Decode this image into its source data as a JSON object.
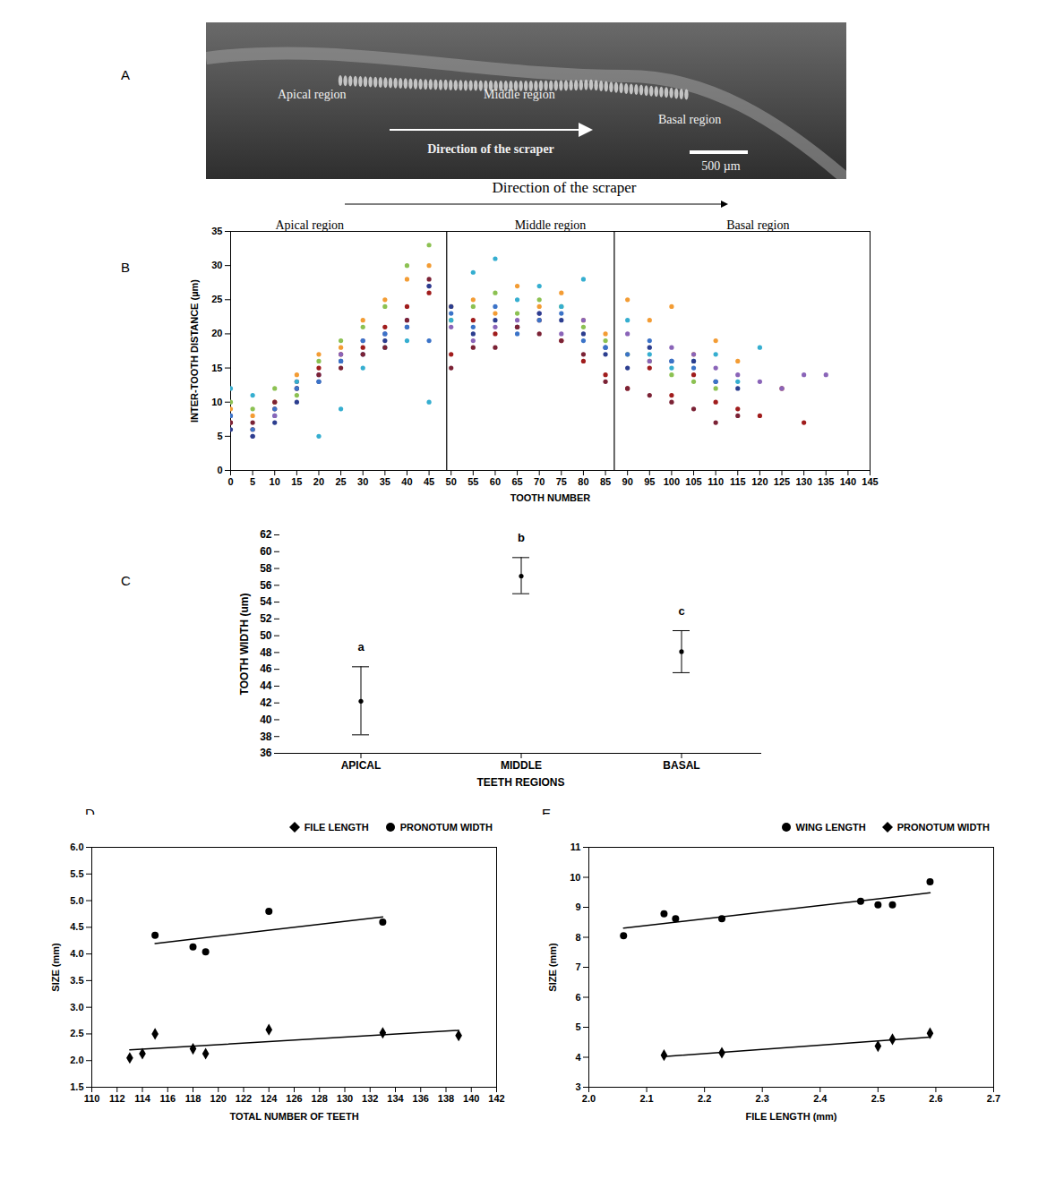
{
  "chart_data": [
    {
      "panel": "A",
      "type": "image",
      "labels": [
        "Apical region",
        "Middle region",
        "Basal region"
      ],
      "arrow_label": "Direction of the scraper",
      "scale_bar": "500 µm"
    },
    {
      "panel": "B",
      "type": "scatter",
      "title": "Direction of the scraper",
      "region_labels": [
        "Apical region",
        "Middle region",
        "Basal region"
      ],
      "region_boundaries": [
        49,
        87
      ],
      "x_label": "TOOTH NUMBER",
      "y_label": "INTER-TOOTH DISTANCE (µm)",
      "xlim": [
        0,
        145
      ],
      "xticks": [
        0,
        5,
        10,
        15,
        20,
        25,
        30,
        35,
        40,
        45,
        50,
        55,
        60,
        65,
        70,
        75,
        80,
        85,
        90,
        95,
        100,
        105,
        110,
        115,
        120,
        125,
        130,
        135,
        140,
        145
      ],
      "ylim": [
        0,
        35
      ],
      "yticks": [
        0,
        5,
        10,
        15,
        20,
        25,
        30,
        35
      ],
      "marker": "circle",
      "series": [
        {
          "color": "#a01c1c",
          "x": [
            0,
            5,
            10,
            15,
            20,
            25,
            30,
            35,
            40,
            45,
            50,
            55,
            60,
            65,
            70,
            75,
            80,
            85,
            90,
            95,
            100,
            105,
            110,
            115,
            120,
            125,
            130
          ],
          "values": [
            7,
            6,
            9,
            13,
            15,
            17,
            18,
            21,
            24,
            26,
            17,
            22,
            20,
            21,
            22,
            19,
            16,
            14,
            12,
            15,
            11,
            14,
            10,
            9,
            8,
            12,
            7
          ]
        },
        {
          "color": "#f39c34",
          "x": [
            0,
            5,
            10,
            15,
            20,
            25,
            30,
            35,
            40,
            45,
            50,
            55,
            60,
            65,
            70,
            75,
            80,
            85,
            90,
            95,
            100,
            105,
            110,
            115
          ],
          "values": [
            9,
            8,
            10,
            14,
            17,
            18,
            22,
            25,
            28,
            30,
            24,
            25,
            23,
            27,
            24,
            26,
            22,
            20,
            25,
            22,
            24,
            17,
            19,
            16
          ]
        },
        {
          "color": "#8cc152",
          "x": [
            0,
            5,
            10,
            15,
            20,
            25,
            30,
            35,
            40,
            45,
            50,
            55,
            60,
            65,
            70,
            75,
            80,
            85,
            90,
            95,
            100,
            105,
            110
          ],
          "values": [
            10,
            9,
            12,
            11,
            16,
            19,
            21,
            24,
            30,
            33,
            22,
            24,
            26,
            23,
            25,
            24,
            21,
            19,
            17,
            16,
            14,
            13,
            12
          ]
        },
        {
          "color": "#35aed0",
          "x": [
            0,
            5,
            10,
            15,
            20,
            25,
            30,
            35,
            40,
            45,
            50,
            55,
            60,
            65,
            70,
            75,
            80,
            85,
            90,
            95,
            100,
            105,
            110,
            115,
            120
          ],
          "values": [
            12,
            11,
            8,
            13,
            5,
            9,
            15,
            18,
            19,
            10,
            22,
            29,
            31,
            25,
            27,
            24,
            28,
            18,
            22,
            17,
            15,
            16,
            17,
            13,
            18
          ]
        },
        {
          "color": "#8a64b8",
          "x": [
            0,
            5,
            10,
            15,
            20,
            25,
            30,
            35,
            40,
            45,
            50,
            55,
            60,
            65,
            70,
            75,
            80,
            85,
            90,
            95,
            100,
            105,
            110,
            115,
            120,
            125,
            130,
            135
          ],
          "values": [
            8,
            5,
            8,
            12,
            14,
            17,
            19,
            20,
            22,
            27,
            21,
            19,
            21,
            22,
            23,
            20,
            22,
            18,
            20,
            16,
            18,
            17,
            15,
            14,
            13,
            12,
            14,
            14
          ]
        },
        {
          "color": "#2c3e8f",
          "x": [
            0,
            5,
            10,
            15,
            20,
            25,
            30,
            35,
            40,
            45,
            50,
            55,
            60,
            65,
            70,
            75,
            80,
            85,
            90,
            95,
            100,
            105,
            110,
            115
          ],
          "values": [
            6,
            5,
            7,
            10,
            13,
            16,
            17,
            19,
            21,
            27,
            24,
            20,
            22,
            21,
            23,
            22,
            20,
            17,
            15,
            18,
            16,
            16,
            13,
            12
          ]
        },
        {
          "color": "#7b2235",
          "x": [
            0,
            5,
            10,
            15,
            20,
            25,
            30,
            35,
            40,
            45,
            50,
            55,
            60,
            65,
            70,
            75,
            80,
            85,
            90,
            95,
            100,
            105,
            110,
            115
          ],
          "values": [
            7,
            7,
            10,
            12,
            14,
            15,
            17,
            18,
            22,
            28,
            15,
            18,
            18,
            21,
            20,
            19,
            17,
            13,
            12,
            11,
            10,
            9,
            7,
            8
          ]
        },
        {
          "color": "#3b73c8",
          "x": [
            0,
            5,
            10,
            15,
            20,
            25,
            30,
            35,
            40,
            45,
            50,
            55,
            60,
            65,
            70,
            75,
            80,
            85,
            90,
            95,
            100,
            105,
            110
          ],
          "values": [
            8,
            6,
            9,
            12,
            13,
            16,
            19,
            20,
            21,
            19,
            23,
            21,
            24,
            20,
            22,
            23,
            19,
            18,
            17,
            19,
            16,
            15,
            13
          ]
        }
      ]
    },
    {
      "panel": "C",
      "type": "errorbar",
      "color": "#000000",
      "categories": [
        "APICAL",
        "MIDDLE",
        "BASAL"
      ],
      "values": [
        42.2,
        57.1,
        48.1
      ],
      "lower": [
        38.2,
        55.0,
        45.6
      ],
      "upper": [
        46.3,
        59.3,
        50.6
      ],
      "group_labels": [
        "a",
        "b",
        "c"
      ],
      "x_label": "TEETH REGIONS",
      "y_label": "TOOTH WIDTH (um)",
      "ylim": [
        36,
        62
      ],
      "yticks": [
        36,
        38,
        40,
        42,
        44,
        46,
        48,
        50,
        52,
        54,
        56,
        58,
        60,
        62
      ]
    },
    {
      "panel": "D",
      "type": "scatter",
      "color": "#000000",
      "legend": "top-right",
      "x_label": "TOTAL NUMBER OF TEETH",
      "y_label": "SIZE (mm)",
      "xlim": [
        110,
        142
      ],
      "xticks": [
        110,
        112,
        114,
        116,
        118,
        120,
        122,
        124,
        126,
        128,
        130,
        132,
        134,
        136,
        138,
        140,
        142
      ],
      "ylim": [
        1.5,
        6.0
      ],
      "yticks": [
        1.5,
        {
          "value": 2,
          "label": "2.0"
        },
        2.5,
        {
          "value": 3,
          "label": "3.0"
        },
        3.5,
        {
          "value": 4,
          "label": "4.0"
        },
        4.5,
        {
          "value": 5,
          "label": "5.0"
        },
        5.5,
        {
          "value": 6,
          "label": "6.0"
        }
      ],
      "series": [
        {
          "name": "FILE LENGTH",
          "marker": "diamond",
          "x": [
            113,
            114,
            115,
            118,
            119,
            124,
            133,
            139
          ],
          "values": [
            2.05,
            2.13,
            2.5,
            2.22,
            2.13,
            2.58,
            2.52,
            2.47
          ]
        },
        {
          "name": "PRONOTUM WIDTH",
          "marker": "circle",
          "x": [
            115,
            118,
            119,
            124,
            133
          ],
          "values": [
            4.35,
            4.13,
            4.04,
            4.8,
            4.6
          ]
        }
      ]
    },
    {
      "panel": "E",
      "type": "scatter",
      "color": "#000000",
      "legend": "top-right",
      "x_label": "FILE LENGTH (mm)",
      "y_label": "SIZE (mm)",
      "xlim": [
        2.0,
        2.7
      ],
      "xticks": [
        {
          "value": 2,
          "label": "2.0"
        },
        2.1,
        2.2,
        2.3,
        2.4,
        2.5,
        2.6,
        2.7
      ],
      "ylim": [
        3,
        11
      ],
      "yticks": [
        3,
        4,
        5,
        6,
        7,
        8,
        9,
        10,
        11
      ],
      "series": [
        {
          "name": "WING LENGTH",
          "marker": "circle",
          "x": [
            2.06,
            2.13,
            2.15,
            2.23,
            2.47,
            2.5,
            2.525,
            2.59
          ],
          "values": [
            8.05,
            8.78,
            8.62,
            8.62,
            9.2,
            9.08,
            9.08,
            9.85
          ]
        },
        {
          "name": "PRONOTUM WIDTH",
          "marker": "diamond",
          "x": [
            2.13,
            2.23,
            2.5,
            2.525,
            2.59
          ],
          "values": [
            4.07,
            4.15,
            4.37,
            4.6,
            4.8
          ]
        }
      ]
    }
  ]
}
